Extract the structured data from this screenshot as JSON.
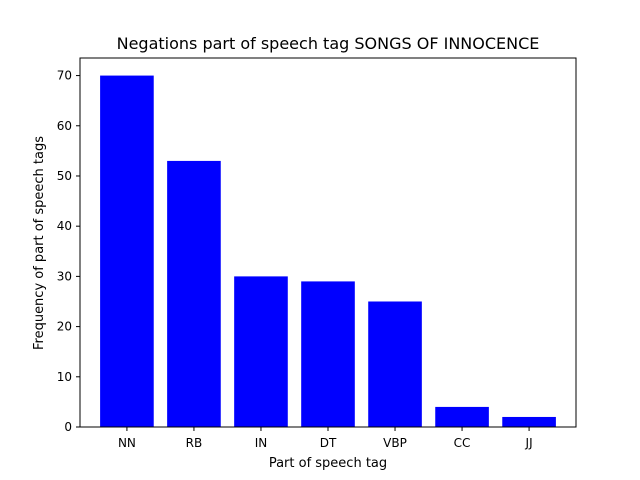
{
  "chart_data": {
    "type": "bar",
    "title": "Negations part of speech tag SONGS OF INNOCENCE",
    "xlabel": "Part of speech tag",
    "ylabel": "Frequency of part of speech tags",
    "categories": [
      "NN",
      "RB",
      "IN",
      "DT",
      "VBP",
      "CC",
      "JJ"
    ],
    "values": [
      70,
      53,
      30,
      29,
      25,
      4,
      2
    ],
    "ylim": [
      0,
      73.5
    ],
    "yticks": [
      0,
      10,
      20,
      30,
      40,
      50,
      60,
      70
    ],
    "bar_color": "#0000ff",
    "grid": false
  }
}
